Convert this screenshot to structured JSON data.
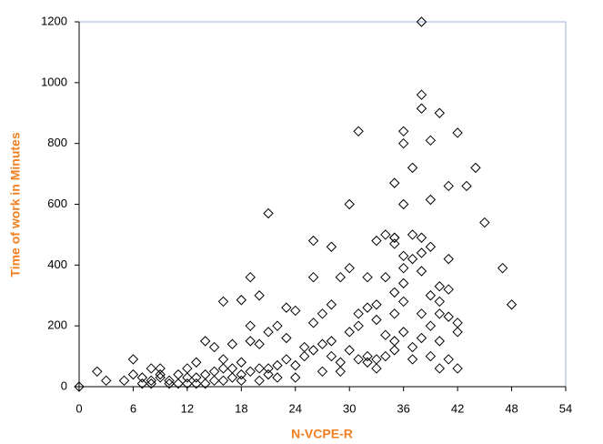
{
  "chart_data": {
    "type": "scatter",
    "x_label": "N-VCPE-R",
    "y_label": "Time of work in Minutes",
    "xlim": [
      0,
      54
    ],
    "xticks": [
      0,
      6,
      12,
      18,
      24,
      30,
      36,
      42,
      48,
      54
    ],
    "ylim": [
      0,
      1200
    ],
    "yticks": [
      0,
      200,
      400,
      600,
      800,
      1000,
      1200
    ],
    "color": "#000000",
    "x": [
      38,
      38,
      38,
      40,
      31,
      36,
      42,
      36,
      39,
      37,
      44,
      41,
      43,
      35,
      39,
      30,
      36,
      21,
      45,
      26,
      28,
      33,
      34,
      35,
      35,
      37,
      38,
      38,
      36,
      39,
      41,
      47,
      37,
      30,
      32,
      29,
      26,
      19,
      20,
      16,
      18,
      48,
      40,
      41,
      39,
      35,
      33,
      33,
      23,
      24,
      31,
      27,
      28,
      36,
      38,
      40,
      42,
      35,
      25,
      22,
      19,
      21,
      20,
      17,
      19,
      14,
      15,
      16,
      13,
      12,
      9,
      8,
      6,
      6,
      5,
      3,
      2,
      0,
      7,
      8,
      9,
      10,
      11,
      12,
      13,
      14,
      15,
      16,
      17,
      18,
      18,
      20,
      21,
      22,
      23,
      23,
      24,
      25,
      26,
      27,
      28,
      29,
      29,
      30,
      31,
      32,
      33,
      34,
      35,
      36,
      37,
      38,
      39,
      40,
      41,
      42,
      26,
      28,
      30,
      32,
      34,
      36,
      38,
      40,
      42,
      40,
      24,
      20,
      14,
      16,
      10,
      11,
      12,
      7,
      8,
      9,
      13,
      15,
      17,
      18,
      19,
      21,
      22,
      27,
      31,
      33,
      35,
      37,
      39,
      41,
      35,
      36,
      34,
      32
    ],
    "values": [
      1200,
      960,
      915,
      900,
      840,
      840,
      835,
      800,
      810,
      720,
      720,
      660,
      660,
      670,
      615,
      600,
      600,
      570,
      540,
      480,
      460,
      480,
      500,
      490,
      470,
      500,
      490,
      440,
      390,
      460,
      420,
      390,
      420,
      390,
      360,
      360,
      360,
      360,
      300,
      280,
      285,
      270,
      330,
      320,
      300,
      310,
      270,
      220,
      260,
      250,
      240,
      240,
      270,
      280,
      240,
      240,
      210,
      240,
      100,
      200,
      200,
      180,
      140,
      140,
      150,
      150,
      130,
      90,
      80,
      60,
      60,
      60,
      90,
      40,
      20,
      20,
      50,
      0,
      10,
      20,
      30,
      20,
      10,
      30,
      30,
      40,
      50,
      60,
      30,
      20,
      80,
      60,
      40,
      70,
      90,
      160,
      70,
      130,
      120,
      140,
      100,
      80,
      50,
      120,
      200,
      100,
      90,
      170,
      150,
      180,
      130,
      160,
      100,
      150,
      90,
      180,
      210,
      150,
      180,
      260,
      360,
      340,
      380,
      280,
      60,
      60,
      30,
      20,
      10,
      20,
      10,
      40,
      10,
      30,
      10,
      40,
      10,
      20,
      60,
      40,
      50,
      60,
      30,
      50,
      90,
      60,
      120,
      90,
      200,
      230,
      490,
      430,
      100,
      80
    ]
  }
}
